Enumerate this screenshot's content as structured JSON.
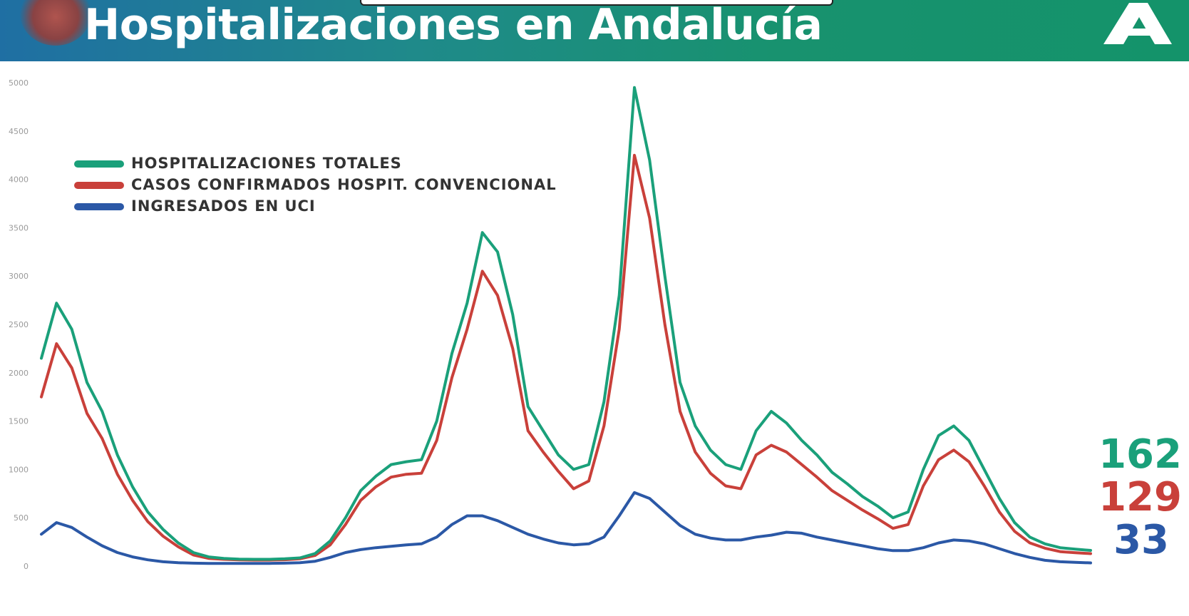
{
  "header": {
    "title": "Hospitalizaciones en Andalucía"
  },
  "chart_data": {
    "type": "line",
    "title": "Hospitalizaciones en Andalucía",
    "ylim": [
      0,
      5000
    ],
    "yticks": [
      0,
      500,
      1000,
      1500,
      2000,
      2500,
      3000,
      3500,
      4000,
      4500,
      5000
    ],
    "grid": false,
    "legend_placement": "top-left",
    "series": [
      {
        "name": "HOSPITALIZACIONES TOTALES",
        "color": "#1aa07a",
        "values": [
          2150,
          2720,
          2450,
          1900,
          1600,
          1150,
          820,
          560,
          380,
          240,
          140,
          95,
          80,
          72,
          70,
          70,
          75,
          85,
          130,
          260,
          500,
          780,
          930,
          1050,
          1080,
          1100,
          1500,
          2200,
          2720,
          3450,
          3250,
          2600,
          1650,
          1400,
          1150,
          1000,
          1050,
          1700,
          2800,
          4950,
          4200,
          3000,
          1900,
          1450,
          1200,
          1050,
          1000,
          1400,
          1600,
          1480,
          1300,
          1150,
          970,
          850,
          720,
          620,
          500,
          560,
          1000,
          1350,
          1450,
          1300,
          1000,
          700,
          450,
          300,
          230,
          190,
          175,
          162
        ]
      },
      {
        "name": "CASOS CONFIRMADOS HOSPIT. CONVENCIONAL",
        "color": "#c9403a",
        "values": [
          1750,
          2300,
          2050,
          1580,
          1320,
          950,
          680,
          460,
          310,
          200,
          115,
          80,
          70,
          65,
          62,
          62,
          66,
          75,
          110,
          220,
          430,
          680,
          820,
          920,
          950,
          960,
          1300,
          1950,
          2450,
          3050,
          2800,
          2250,
          1400,
          1180,
          980,
          800,
          880,
          1450,
          2450,
          4250,
          3600,
          2500,
          1600,
          1180,
          960,
          830,
          800,
          1150,
          1250,
          1180,
          1050,
          920,
          780,
          680,
          580,
          490,
          390,
          430,
          830,
          1100,
          1200,
          1080,
          830,
          560,
          360,
          240,
          185,
          150,
          138,
          129
        ]
      },
      {
        "name": "INGRESADOS EN UCI",
        "color": "#2b58a6",
        "values": [
          330,
          450,
          400,
          300,
          210,
          140,
          95,
          65,
          45,
          35,
          30,
          28,
          27,
          27,
          27,
          28,
          30,
          35,
          50,
          90,
          140,
          170,
          190,
          205,
          220,
          230,
          300,
          430,
          520,
          520,
          470,
          400,
          330,
          280,
          240,
          220,
          230,
          300,
          520,
          760,
          700,
          560,
          420,
          330,
          290,
          270,
          270,
          300,
          320,
          350,
          340,
          300,
          270,
          240,
          210,
          180,
          160,
          160,
          190,
          240,
          270,
          260,
          230,
          180,
          130,
          90,
          60,
          45,
          38,
          33
        ]
      }
    ],
    "end_labels": [
      "162",
      "129",
      "33"
    ]
  }
}
